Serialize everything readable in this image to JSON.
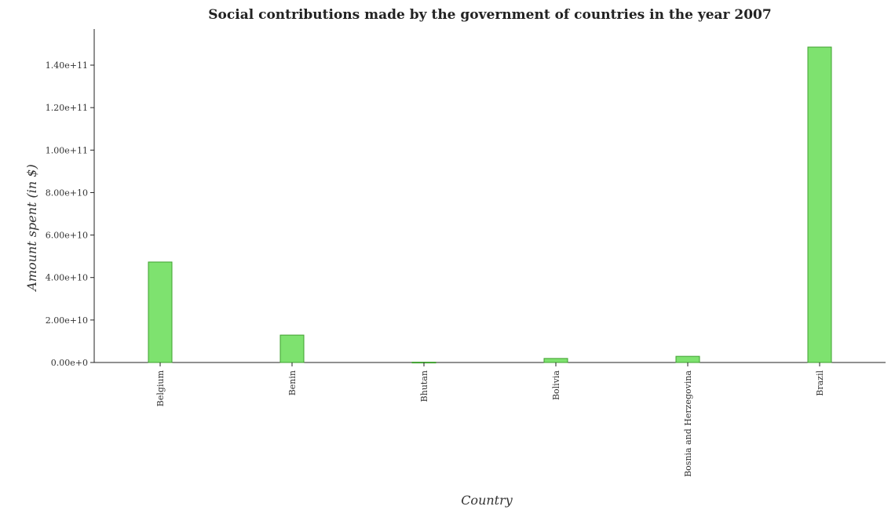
{
  "chart_data": {
    "type": "bar",
    "title": "Social contributions made by the government of countries in the year 2007",
    "xlabel": "Country",
    "ylabel": "Amount spent (in $)",
    "categories": [
      "Belgium",
      "Benin",
      "Bhutan",
      "Bolivia",
      "Bosnia and Herzegovina",
      "Brazil"
    ],
    "values": [
      47300000000,
      12900000000,
      150000000,
      1900000000,
      2900000000,
      148500000000
    ],
    "ylim": [
      0,
      157000000000
    ],
    "yticks": [
      0,
      20000000000,
      40000000000,
      60000000000,
      80000000000,
      100000000000,
      120000000000,
      140000000000
    ],
    "ytick_labels": [
      "0.00e+0",
      "2.00e+10",
      "4.00e+10",
      "6.00e+10",
      "8.00e+10",
      "1.00e+11",
      "1.20e+11",
      "1.40e+11"
    ],
    "grid": false,
    "colors": {
      "bar_fill": "#7ee26f",
      "bar_stroke": "#3fa02f"
    }
  }
}
